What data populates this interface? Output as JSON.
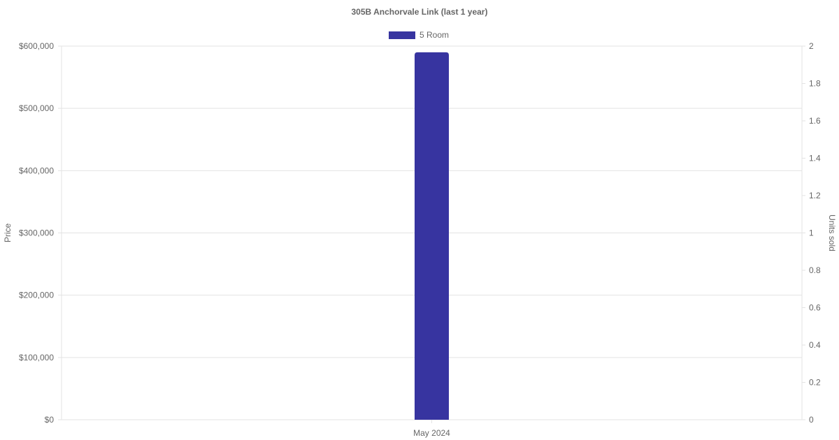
{
  "chart_data": {
    "type": "bar",
    "title": "305B Anchorvale Link (last 1 year)",
    "categories": [
      "May 2024"
    ],
    "series": [
      {
        "name": "5 Room",
        "values": [
          590000
        ],
        "color": "#3734a0"
      }
    ],
    "ylabel": "Price",
    "y2label": "Units sold",
    "ylim": [
      0,
      600000
    ],
    "yticks": [
      "$0",
      "$100,000",
      "$200,000",
      "$300,000",
      "$400,000",
      "$500,000",
      "$600,000"
    ],
    "y2lim": [
      0,
      2
    ],
    "y2ticks": [
      "0",
      "0.2",
      "0.4",
      "0.6",
      "0.8",
      "1",
      "1.2",
      "1.4",
      "1.6",
      "1.8",
      "2"
    ],
    "grid": true,
    "legend": "top"
  }
}
